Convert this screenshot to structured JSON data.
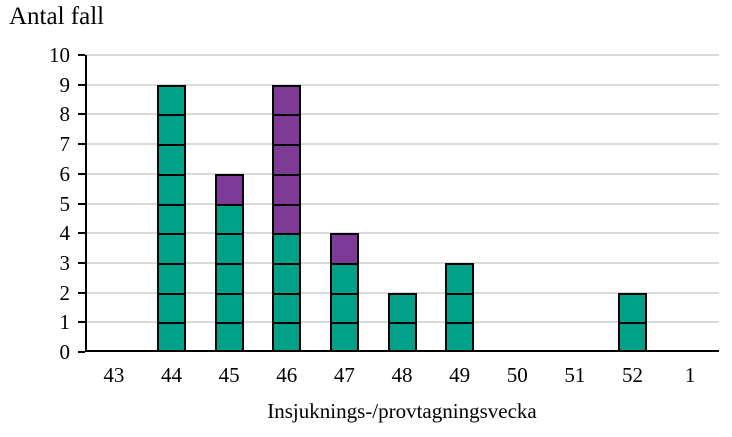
{
  "title": "Antal fall",
  "chart_data": {
    "type": "bar",
    "stacked": true,
    "unit_cells": true,
    "title": "Antal fall",
    "xlabel": "Insjuknings-/provtagningsvecka",
    "ylabel": "",
    "categories": [
      "43",
      "44",
      "45",
      "46",
      "47",
      "48",
      "49",
      "50",
      "51",
      "52",
      "1"
    ],
    "series": [
      {
        "name": "green-cases",
        "color": "#00A188",
        "values": [
          0,
          9,
          5,
          4,
          3,
          2,
          3,
          0,
          0,
          2,
          0
        ]
      },
      {
        "name": "purple-cases",
        "color": "#7E3A97",
        "values": [
          0,
          0,
          1,
          5,
          1,
          0,
          0,
          0,
          0,
          0,
          0
        ]
      }
    ],
    "totals": [
      0,
      9,
      6,
      9,
      4,
      2,
      3,
      0,
      0,
      2,
      0
    ],
    "ylim": [
      0,
      10
    ],
    "yticks": [
      "0",
      "1",
      "2",
      "3",
      "4",
      "5",
      "6",
      "7",
      "8",
      "9",
      "10"
    ],
    "grid": true,
    "legend": "none",
    "gridline_color": "#DADADA",
    "axis_color": "#000000",
    "cell_border_color": "#000000"
  }
}
